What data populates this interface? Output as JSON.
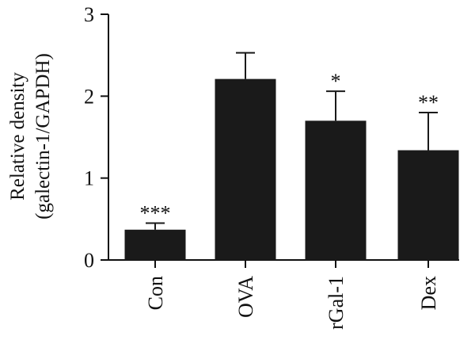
{
  "chart_data": {
    "type": "bar",
    "title": "",
    "ylabel_line1": "Relative density",
    "ylabel_line2": "(galectin-1/GAPDH)",
    "xlabel": "",
    "categories": [
      "Con",
      "OVA",
      "rGal-1",
      "Dex"
    ],
    "values": [
      0.37,
      2.21,
      1.7,
      1.34
    ],
    "errors": [
      0.08,
      0.32,
      0.36,
      0.46
    ],
    "significance": [
      "***",
      "",
      "*",
      "**"
    ],
    "ylim": [
      0,
      3
    ],
    "yticks": [
      0,
      1,
      2,
      3
    ],
    "grid": false,
    "colors": {
      "bar": "#1a1a1a",
      "axis": "#111111"
    }
  }
}
